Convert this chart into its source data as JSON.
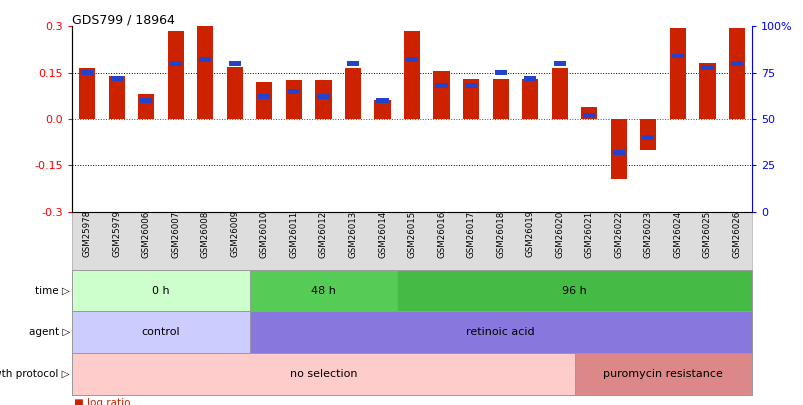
{
  "title": "GDS799 / 18964",
  "samples": [
    "GSM25978",
    "GSM25979",
    "GSM26006",
    "GSM26007",
    "GSM26008",
    "GSM26009",
    "GSM26010",
    "GSM26011",
    "GSM26012",
    "GSM26013",
    "GSM26014",
    "GSM26015",
    "GSM26016",
    "GSM26017",
    "GSM26018",
    "GSM26019",
    "GSM26020",
    "GSM26021",
    "GSM26022",
    "GSM26023",
    "GSM26024",
    "GSM26025",
    "GSM26026"
  ],
  "log_ratio": [
    0.165,
    0.14,
    0.08,
    0.285,
    0.3,
    0.17,
    0.12,
    0.125,
    0.125,
    0.165,
    0.06,
    0.285,
    0.155,
    0.13,
    0.13,
    0.13,
    0.165,
    0.04,
    -0.195,
    -0.1,
    0.295,
    0.18,
    0.295
  ],
  "percentile_rank": [
    75,
    72,
    60,
    80,
    82,
    80,
    62,
    65,
    62,
    80,
    60,
    82,
    68,
    68,
    75,
    72,
    80,
    52,
    32,
    40,
    84,
    78,
    80
  ],
  "bar_color": "#cc2200",
  "pct_color": "#2244cc",
  "ylim": [
    -0.3,
    0.3
  ],
  "yticks_left": [
    -0.3,
    -0.15,
    0.0,
    0.15,
    0.3
  ],
  "yticks_right": [
    0,
    25,
    50,
    75,
    100
  ],
  "hlines_dotted": [
    0.15,
    0.0,
    -0.15
  ],
  "time_groups": [
    {
      "label": "0 h",
      "start": 0,
      "end": 6,
      "color": "#ccffcc"
    },
    {
      "label": "48 h",
      "start": 6,
      "end": 11,
      "color": "#55cc55"
    },
    {
      "label": "96 h",
      "start": 11,
      "end": 23,
      "color": "#44bb44"
    }
  ],
  "agent_groups": [
    {
      "label": "control",
      "start": 0,
      "end": 6,
      "color": "#ccccff"
    },
    {
      "label": "retinoic acid",
      "start": 6,
      "end": 23,
      "color": "#8877dd"
    }
  ],
  "growth_groups": [
    {
      "label": "no selection",
      "start": 0,
      "end": 17,
      "color": "#ffcccc"
    },
    {
      "label": "puromycin resistance",
      "start": 17,
      "end": 23,
      "color": "#dd8888"
    }
  ],
  "bg_color": "#ffffff",
  "xtick_bg": "#dddddd"
}
